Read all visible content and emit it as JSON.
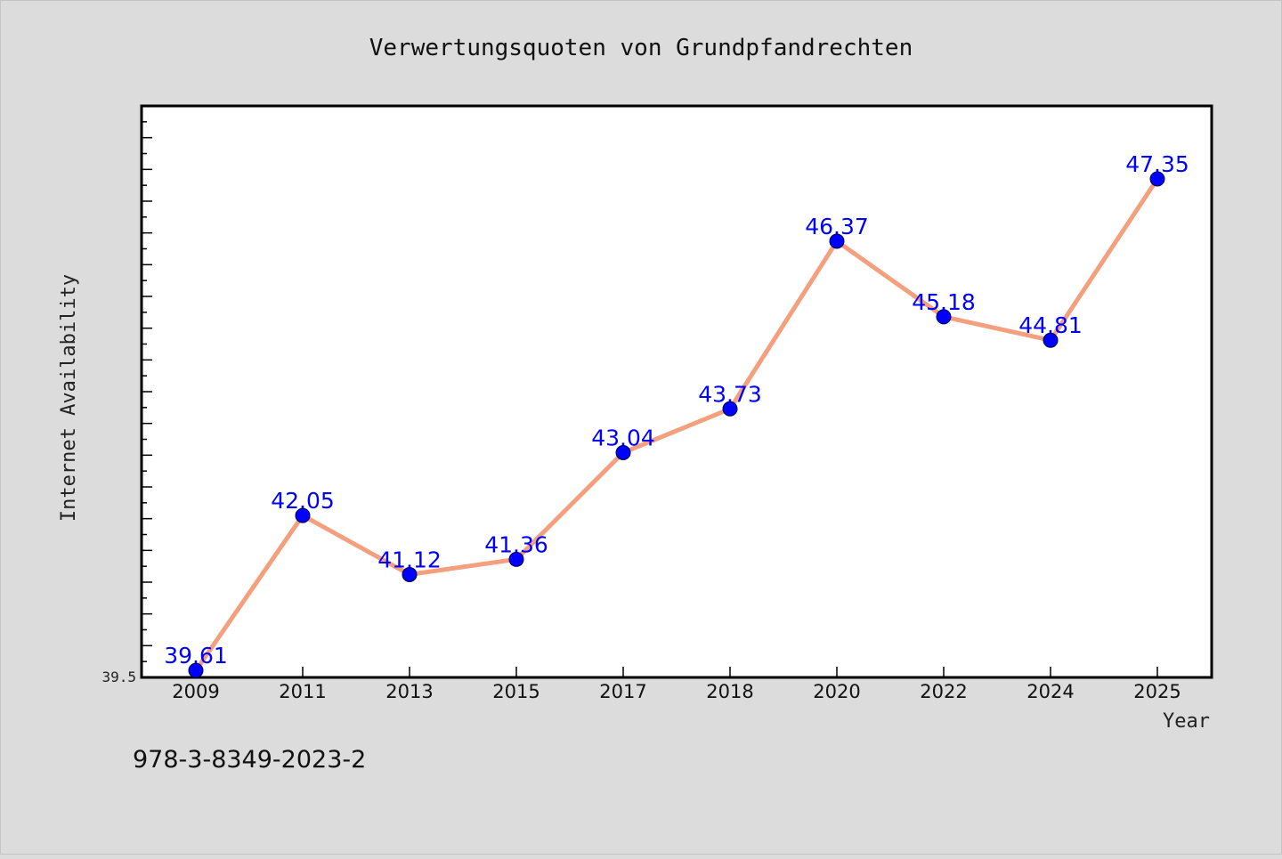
{
  "chart_data": {
    "type": "line",
    "title": "Verwertungsquoten von Grundpfandrechten",
    "xlabel": "Year",
    "ylabel": "Internet Availability",
    "categories": [
      "2009",
      "2011",
      "2013",
      "2015",
      "2017",
      "2018",
      "2020",
      "2022",
      "2024",
      "2025"
    ],
    "series": [
      {
        "values": [
          39.61,
          42.05,
          41.12,
          41.36,
          43.04,
          43.73,
          46.37,
          45.18,
          44.81,
          47.35
        ],
        "data_labels": [
          "39.61",
          "42.05",
          "41.12",
          "41.36",
          "43.04",
          "43.73",
          "46.37",
          "45.18",
          "44.81",
          "47.35"
        ]
      }
    ],
    "ylim": [
      39.5,
      48.5
    ],
    "yticks_labeled": [
      "39.5"
    ],
    "grid": false,
    "legend": "none",
    "colors": {
      "line": "#f4a07e",
      "marker": "#0000ff",
      "data_label": "#0000ff",
      "plot_background": "#ffffff",
      "figure_background": "#dcdcdc"
    }
  },
  "footer": {
    "isbn": "978-3-8349-2023-2"
  }
}
